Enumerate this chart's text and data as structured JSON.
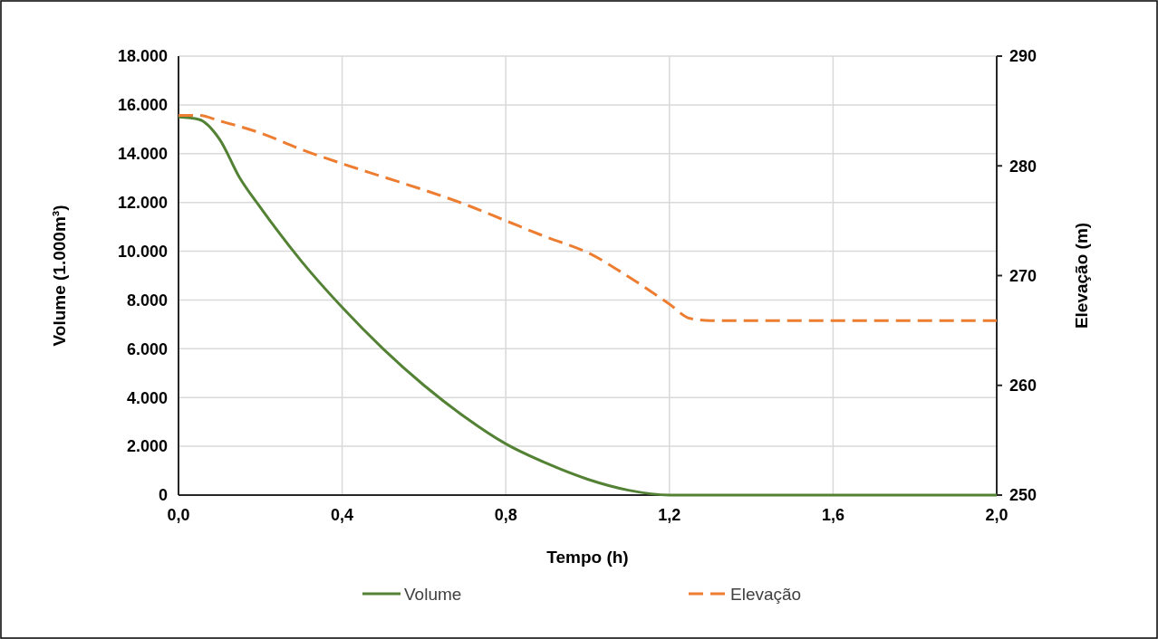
{
  "chart_data": {
    "type": "line",
    "xlabel": "Tempo (h)",
    "ylabel": "Volume (1.000m³)",
    "y2label": "Elevação (m)",
    "xlim": [
      0,
      2
    ],
    "xticks": [
      {
        "value": 0,
        "label": "0,0"
      },
      {
        "value": 0.4,
        "label": "0,4"
      },
      {
        "value": 0.8,
        "label": "0,8"
      },
      {
        "value": 1.2,
        "label": "1,2"
      },
      {
        "value": 1.6,
        "label": "1,6"
      },
      {
        "value": 2,
        "label": "2,0"
      }
    ],
    "ylim": [
      0,
      18000
    ],
    "yticks": [
      {
        "value": 0,
        "label": "0"
      },
      {
        "value": 2000,
        "label": "2.000"
      },
      {
        "value": 4000,
        "label": "4.000"
      },
      {
        "value": 6000,
        "label": "6.000"
      },
      {
        "value": 8000,
        "label": "8.000"
      },
      {
        "value": 10000,
        "label": "10.000"
      },
      {
        "value": 12000,
        "label": "12.000"
      },
      {
        "value": 14000,
        "label": "14.000"
      },
      {
        "value": 16000,
        "label": "16.000"
      },
      {
        "value": 18000,
        "label": "18.000"
      }
    ],
    "y2lim": [
      250,
      290
    ],
    "y2ticks": [
      250,
      260,
      270,
      280,
      290
    ],
    "grid": true,
    "legend": "bottom",
    "marker": "none",
    "series": [
      {
        "name": "Volume",
        "color": "#548235",
        "line_style": "solid",
        "x": [
          0,
          0.05,
          0.1,
          0.15,
          0.2,
          0.3,
          0.4,
          0.5,
          0.6,
          0.7,
          0.8,
          0.9,
          1.0,
          1.1,
          1.2,
          1.6,
          2.0
        ],
        "values": [
          15500,
          15400,
          14600,
          13000,
          11800,
          9600,
          7700,
          6000,
          4500,
          3200,
          2100,
          1300,
          650,
          200,
          0,
          0,
          0
        ]
      },
      {
        "name": "Elevação",
        "color": "#ed7d31",
        "line_style": "dashed",
        "axis": "y2",
        "x": [
          0,
          0.05,
          0.1,
          0.2,
          0.3,
          0.4,
          0.5,
          0.6,
          0.7,
          0.8,
          0.9,
          1.0,
          1.1,
          1.2,
          1.25,
          1.3,
          1.6,
          2.0
        ],
        "values": [
          284.6,
          284.6,
          284.1,
          283.0,
          281.5,
          280.2,
          279.0,
          277.8,
          276.5,
          275.0,
          273.5,
          272.1,
          269.9,
          267.4,
          266.1,
          265.9,
          265.9,
          265.9
        ]
      }
    ]
  }
}
